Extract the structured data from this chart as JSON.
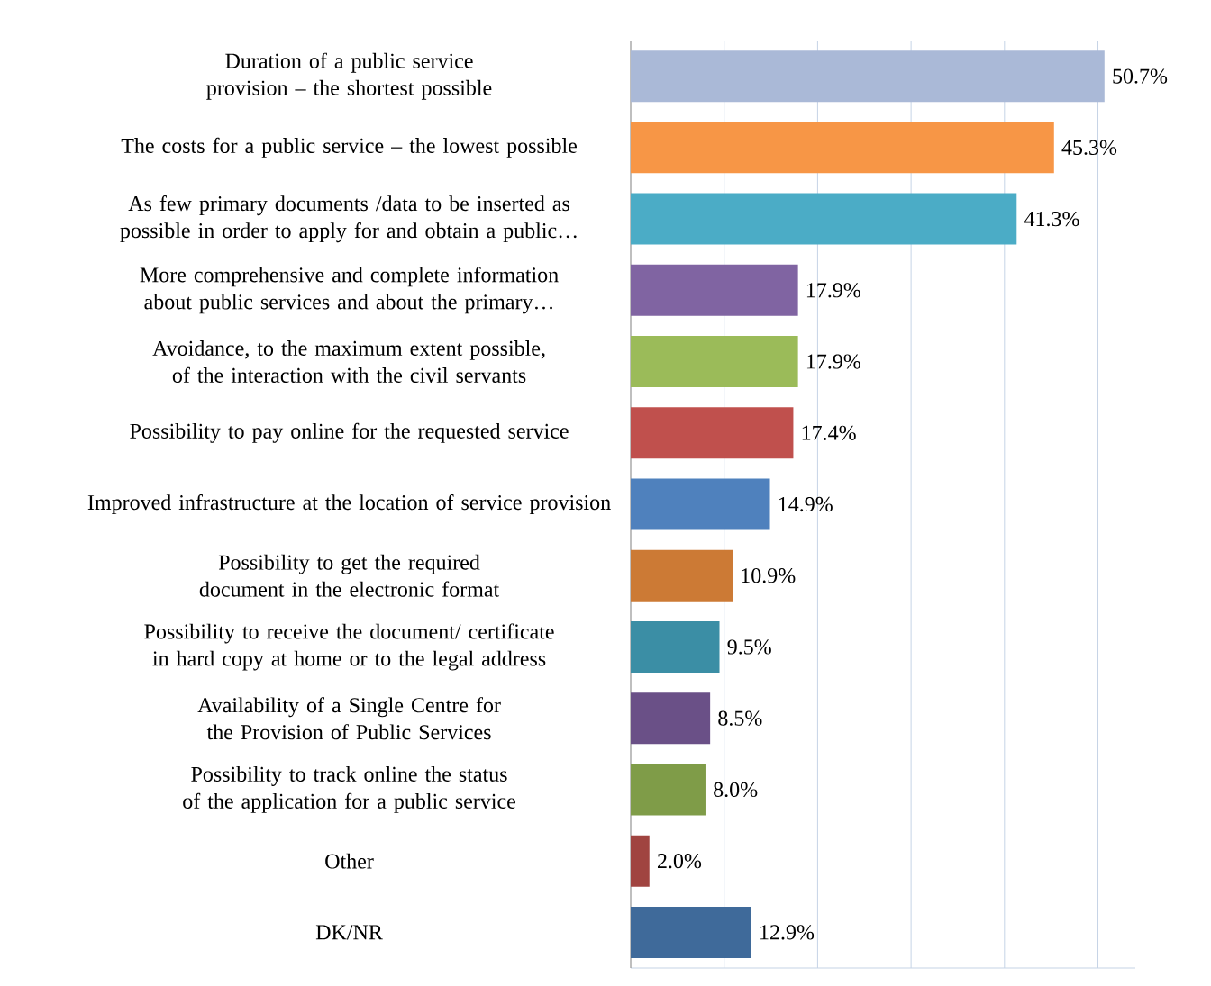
{
  "chart_data": {
    "type": "bar",
    "orientation": "horizontal",
    "categories": [
      "Duration of a public service provision – the shortest possible",
      "The costs for a public service – the lowest possible",
      "As few primary documents /data to be inserted as possible in order to apply for and obtain a public…",
      "More comprehensive and complete information about public services and about the primary…",
      "Avoidance, to the maximum extent possible, of the interaction with the civil servants",
      "Possibility to pay online for the requested service",
      "Improved infrastructure at the location of service provision",
      "Possibility to get the required document in the electronic format",
      "Possibility to receive the document/ certificate in hard copy at home or to the legal address",
      "Availability of a Single Centre for the Provision of Public Services",
      "Possibility to track online the status of the application for a public service",
      "Other",
      "DK/NR"
    ],
    "values": [
      50.7,
      45.3,
      41.3,
      17.9,
      17.9,
      17.4,
      14.9,
      10.9,
      9.5,
      8.5,
      8.0,
      2.0,
      12.9
    ],
    "value_labels": [
      "50.7%",
      "45.3%",
      "41.3%",
      "17.9%",
      "17.9%",
      "17.4%",
      "14.9%",
      "10.9%",
      "9.5%",
      "8.5%",
      "8.0%",
      "2.0%",
      "12.9%"
    ],
    "colors": [
      "#aab9d7",
      "#f79646",
      "#4bacc6",
      "#8064a2",
      "#9bbb59",
      "#c0504d",
      "#4f81bd",
      "#cc7a35",
      "#3b8ea5",
      "#6a5087",
      "#7f9c48",
      "#a04440",
      "#3f6a9a"
    ],
    "xlim": [
      0,
      54
    ],
    "xticks": [
      {
        "value": 10,
        "label": null
      },
      {
        "value": 20,
        "label": null
      },
      {
        "value": 30,
        "label": null
      },
      {
        "value": 40,
        "label": null
      },
      {
        "value": 50,
        "label": null
      }
    ],
    "grid": "x",
    "tick_labels": "y"
  }
}
